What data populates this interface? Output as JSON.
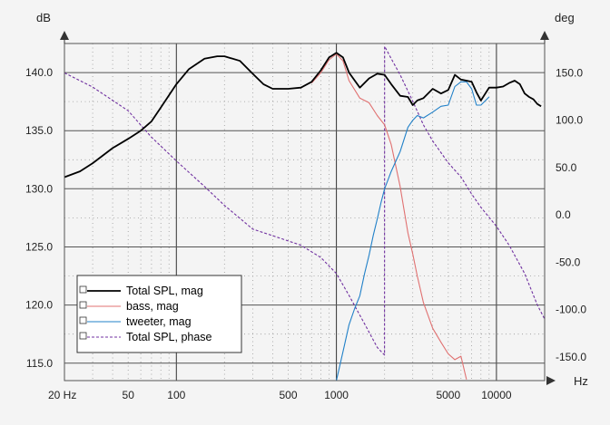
{
  "chart_data": {
    "type": "line",
    "x_scale": "log",
    "xlim": [
      20,
      20000
    ],
    "ylim_left": [
      113.5,
      142.5
    ],
    "ylim_right": [
      -175,
      181
    ],
    "left_unit": "dB",
    "right_unit": "deg",
    "x_unit": "Hz",
    "x_tick_labels": [
      {
        "value": 20,
        "label": "20 Hz"
      },
      {
        "value": 50,
        "label": "50"
      },
      {
        "value": 100,
        "label": "100"
      },
      {
        "value": 500,
        "label": "500"
      },
      {
        "value": 1000,
        "label": "1000"
      },
      {
        "value": 5000,
        "label": "5000"
      },
      {
        "value": 10000,
        "label": "10000"
      }
    ],
    "left_ticks": [
      {
        "value": 140,
        "label": "140.0"
      },
      {
        "value": 135,
        "label": "135.0"
      },
      {
        "value": 130,
        "label": "130.0"
      },
      {
        "value": 125,
        "label": "125.0"
      },
      {
        "value": 120,
        "label": "120.0"
      },
      {
        "value": 115,
        "label": "115.0"
      }
    ],
    "right_ticks": [
      {
        "value": 150,
        "label": "150.0"
      },
      {
        "value": 100,
        "label": "100.0"
      },
      {
        "value": 50,
        "label": "50.0"
      },
      {
        "value": 0,
        "label": "0.0"
      },
      {
        "value": -50,
        "label": "-50.0"
      },
      {
        "value": -100,
        "label": "-100.0"
      },
      {
        "value": -150,
        "label": "-150.0"
      }
    ],
    "grid": true,
    "legend_position": "bottom-left",
    "series": [
      {
        "name": "Total SPL, mag",
        "axis": "left",
        "color": "#000000",
        "style": "solid",
        "x": [
          20,
          25,
          30,
          40,
          50,
          60,
          70,
          80,
          100,
          120,
          150,
          180,
          200,
          250,
          300,
          350,
          400,
          500,
          600,
          700,
          800,
          900,
          1000,
          1100,
          1200,
          1400,
          1600,
          1800,
          2000,
          2200,
          2500,
          2800,
          3000,
          3200,
          3500,
          4000,
          4500,
          5000,
          5500,
          6000,
          6500,
          7000,
          7500,
          8000,
          9000,
          10000,
          11000,
          12000,
          13000,
          14000,
          15000,
          16000,
          17000,
          18000,
          19000
        ],
        "y": [
          131,
          131.5,
          132.2,
          133.5,
          134.3,
          135,
          135.8,
          137,
          139,
          140.3,
          141.2,
          141.4,
          141.4,
          141,
          139.9,
          139,
          138.6,
          138.6,
          138.7,
          139.2,
          140.2,
          141.3,
          141.7,
          141.3,
          140,
          138.7,
          139.5,
          139.9,
          139.8,
          139,
          138,
          137.9,
          137.2,
          137.6,
          137.8,
          138.6,
          138.2,
          138.5,
          139.8,
          139.4,
          139.3,
          139.2,
          138.3,
          137.6,
          138.7,
          138.7,
          138.8,
          139.1,
          139.3,
          139,
          138.2,
          137.9,
          137.7,
          137.3,
          137.1
        ]
      },
      {
        "name": "bass, mag",
        "axis": "left",
        "color": "#e07070",
        "style": "solid",
        "x": [
          700,
          800,
          900,
          1000,
          1100,
          1200,
          1400,
          1600,
          1800,
          2000,
          2200,
          2500,
          2800,
          3000,
          3200,
          3500,
          4000,
          4500,
          5000,
          5500,
          6000,
          6500
        ],
        "y": [
          139.1,
          140,
          141.1,
          141.6,
          141,
          139.3,
          137.8,
          137.4,
          136.3,
          135.5,
          133.8,
          130.2,
          126.2,
          124.4,
          122.5,
          120.2,
          118,
          116.8,
          115.8,
          115.3,
          115.6,
          113.6
        ]
      },
      {
        "name": "tweeter, mag",
        "axis": "left",
        "color": "#2080c8",
        "style": "solid",
        "x": [
          1000,
          1100,
          1200,
          1300,
          1400,
          1500,
          1600,
          1700,
          1800,
          1900,
          2000,
          2200,
          2500,
          2800,
          3000,
          3200,
          3500,
          4000,
          4500,
          5000,
          5500,
          6000,
          6500,
          7000,
          7500,
          8000,
          9000
        ],
        "y": [
          113.5,
          116,
          118.3,
          119.7,
          120.8,
          122.7,
          124.3,
          126,
          127.4,
          128.8,
          130,
          131.5,
          133.2,
          135.3,
          135.9,
          136.3,
          136.1,
          136.6,
          137.1,
          137.2,
          138.8,
          139.2,
          139.2,
          138.6,
          137.2,
          137.2,
          137.9
        ]
      },
      {
        "name": "Total SPL, phase",
        "axis": "right",
        "color": "#7030a0",
        "style": "dashed",
        "x": [
          20,
          30,
          50,
          70,
          100,
          150,
          200,
          300,
          400,
          600,
          800,
          1000,
          1200,
          1500,
          1800,
          1999,
          2001,
          2200,
          2500,
          3000,
          3500,
          4000,
          5000,
          6000,
          7000,
          8000,
          10000,
          12000,
          15000,
          18000,
          20000
        ],
        "y": [
          150,
          135,
          110,
          82,
          57,
          30,
          10,
          -15,
          -22,
          -32,
          -45,
          -62,
          -85,
          -115,
          -140,
          -148,
          178,
          165,
          148,
          120,
          95,
          78,
          55,
          40,
          22,
          8,
          -12,
          -32,
          -62,
          -95,
          -110
        ]
      }
    ]
  }
}
